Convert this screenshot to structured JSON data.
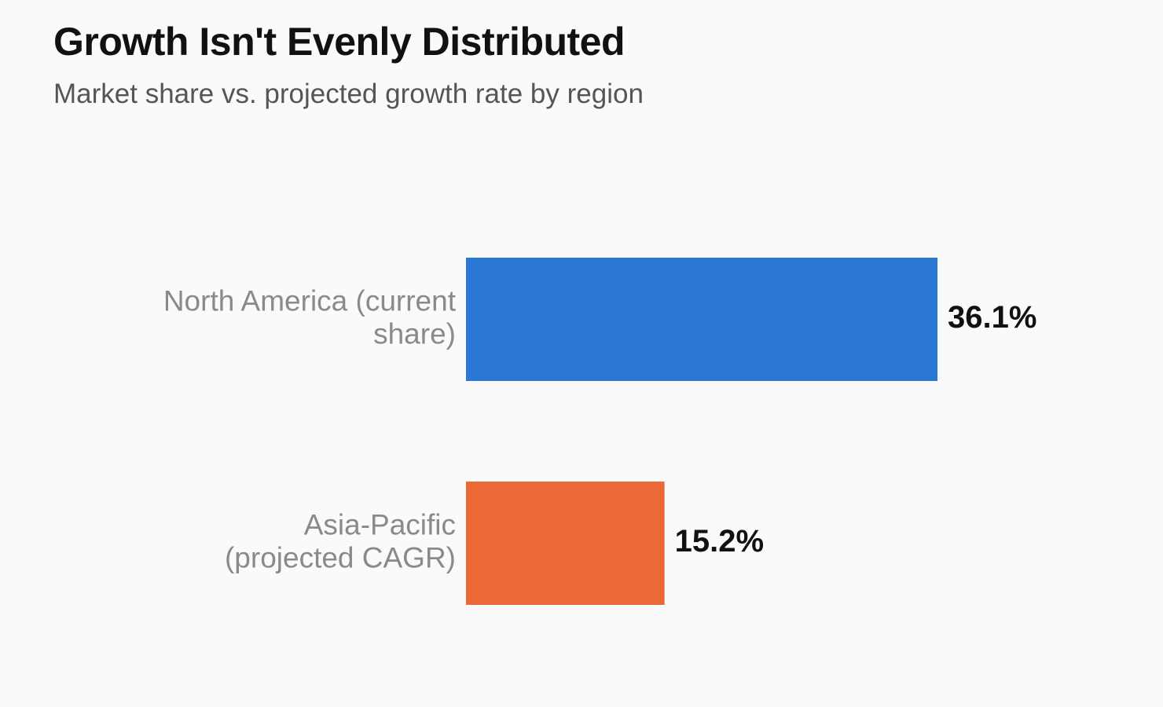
{
  "chart_data": {
    "type": "bar",
    "orientation": "horizontal",
    "title": "Growth Isn't Evenly Distributed",
    "subtitle": "Market share vs. projected growth rate by region",
    "categories": [
      [
        "North America (current",
        "share)"
      ],
      [
        "Asia-Pacific",
        "(projected CAGR)"
      ]
    ],
    "values": [
      36.1,
      15.2
    ],
    "value_labels": [
      "36.1%",
      "15.2%"
    ],
    "colors": [
      "#2a78d4",
      "#ea6936"
    ],
    "xlim": [
      0,
      36.1
    ],
    "grid": false,
    "legend": "none"
  }
}
